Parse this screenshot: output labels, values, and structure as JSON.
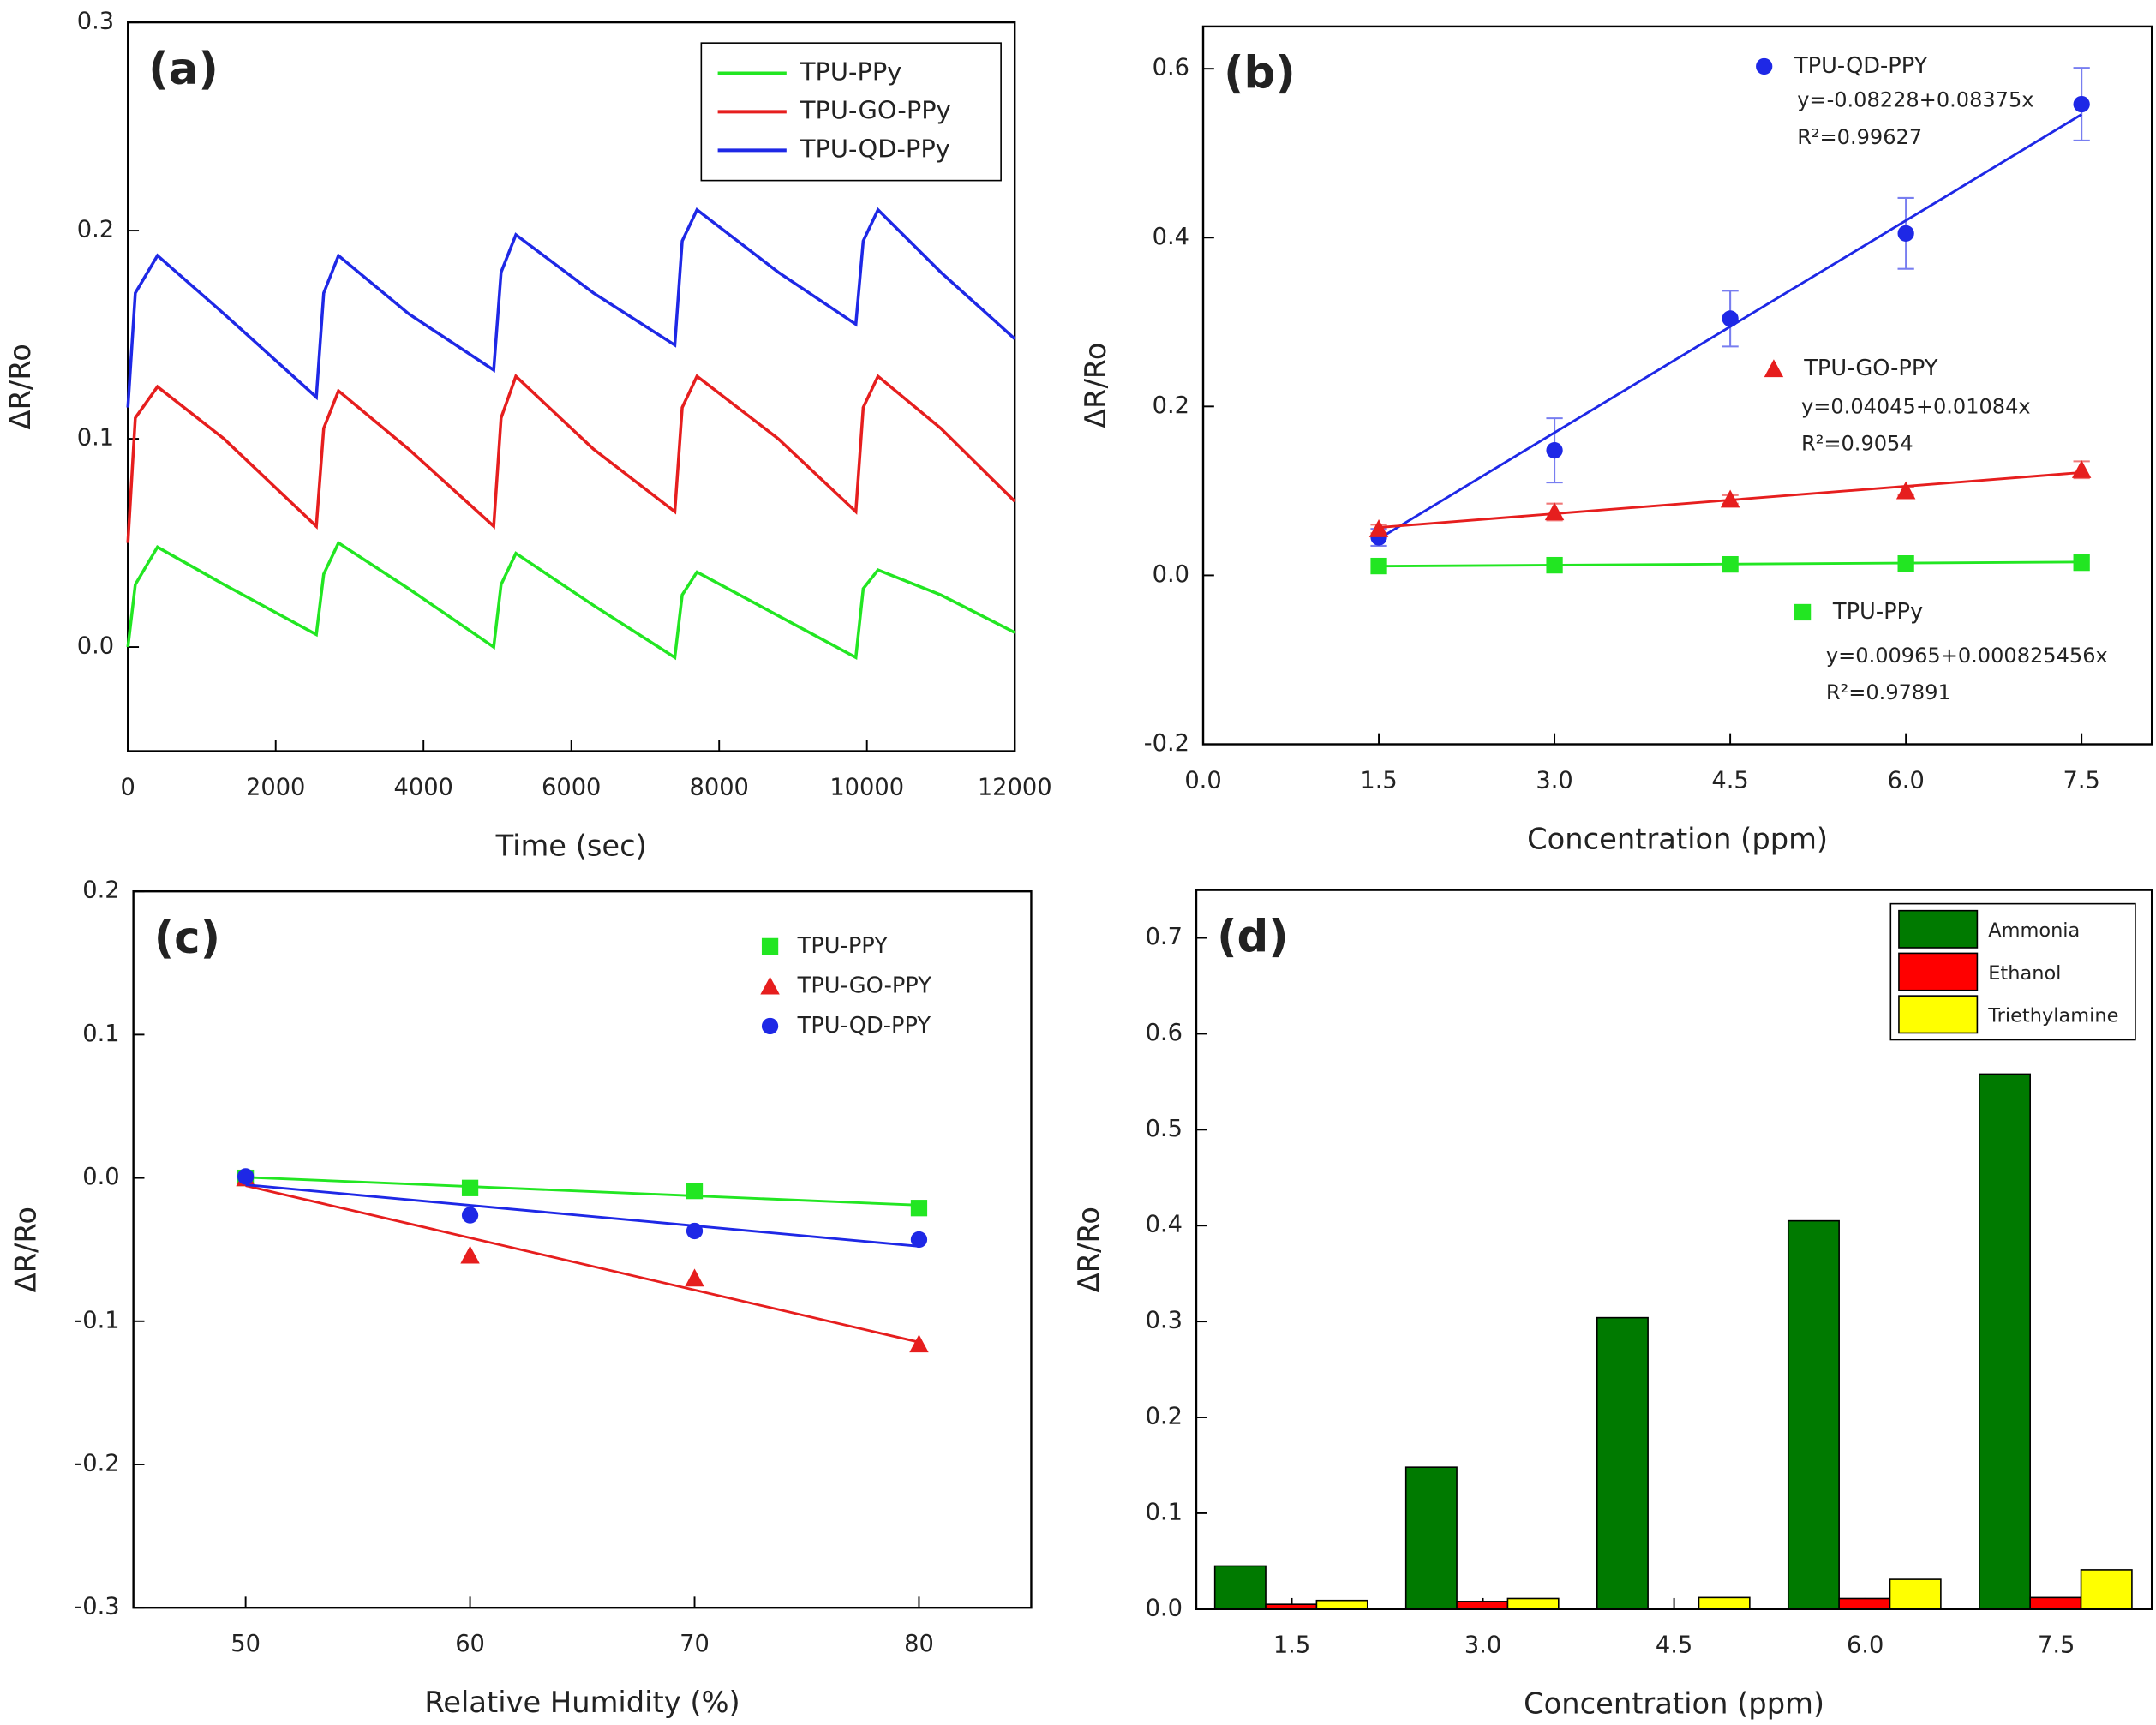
{
  "chart_data": [
    {
      "type": "line",
      "label": "(a)",
      "xlabel": "Time (sec)",
      "ylabel": "ΔR/Ro",
      "legend": "upper right",
      "x": [
        0,
        100,
        400,
        1300,
        2550,
        2650,
        2850,
        3800,
        4950,
        5050,
        5250,
        6300,
        7400,
        7500,
        7700,
        8800,
        9850,
        9950,
        10150,
        11000,
        12000
      ],
      "series": [
        {
          "name": "TPU-PPy",
          "color": "#22e622",
          "values": [
            0,
            0.03,
            0.048,
            0.03,
            0.006,
            0.035,
            0.05,
            0.028,
            0.0,
            0.03,
            0.045,
            0.02,
            -0.005,
            0.025,
            0.036,
            0.015,
            -0.005,
            0.028,
            0.037,
            0.025,
            0.007
          ]
        },
        {
          "name": "TPU-GO-PPy",
          "color": "#e61e1e",
          "values": [
            0.05,
            0.11,
            0.125,
            0.1,
            0.058,
            0.105,
            0.123,
            0.095,
            0.058,
            0.11,
            0.13,
            0.095,
            0.065,
            0.115,
            0.13,
            0.1,
            0.065,
            0.115,
            0.13,
            0.105,
            0.07
          ]
        },
        {
          "name": "TPU-QD-PPy",
          "color": "#1e28e6",
          "values": [
            0.115,
            0.17,
            0.188,
            0.16,
            0.12,
            0.17,
            0.188,
            0.16,
            0.133,
            0.18,
            0.198,
            0.17,
            0.145,
            0.195,
            0.21,
            0.18,
            0.155,
            0.195,
            0.21,
            0.18,
            0.148
          ]
        }
      ],
      "xlim": [
        0,
        12000
      ],
      "xticks": [
        0,
        2000,
        4000,
        6000,
        8000,
        10000,
        12000
      ],
      "ylim": [
        -0.05,
        0.3
      ],
      "yticks": [
        {
          "value": 0,
          "label": "0.0"
        },
        0.1,
        0.2,
        0.3
      ]
    },
    {
      "type": "scatter",
      "label": "(b)",
      "xlabel": "Concentration (ppm)",
      "ylabel": "ΔR/Ro",
      "x": [
        1.5,
        3,
        4.5,
        6,
        7.5
      ],
      "series": [
        {
          "name": "TPU-QD-PPY",
          "color": "#1e28e6",
          "marker": "circle",
          "values": [
            0.045,
            0.148,
            0.304,
            0.405,
            0.558
          ],
          "errors": [
            0.01,
            0.038,
            0.033,
            0.042,
            0.043
          ],
          "fit_intercept": -0.08228,
          "fit_slope": 0.08375,
          "equation": "y=-0.08228+0.08375x",
          "r2": "R²=0.99627"
        },
        {
          "name": "TPU-GO-PPY",
          "color": "#e61e1e",
          "marker": "triangle",
          "values": [
            0.055,
            0.075,
            0.09,
            0.1,
            0.125
          ],
          "errors": [
            0.005,
            0.01,
            0.005,
            0.005,
            0.01
          ],
          "fit_intercept": 0.04045,
          "fit_slope": 0.01084,
          "equation": "y=0.04045+0.01084x",
          "r2": "R²=0.9054"
        },
        {
          "name": "TPU-PPy",
          "color": "#22e622",
          "marker": "square",
          "values": [
            0.011,
            0.012,
            0.013,
            0.014,
            0.015
          ],
          "fit_intercept": 0.00965,
          "fit_slope": 0.000825456,
          "equation": "y=0.00965+0.000825456x",
          "r2": "R²=0.97891"
        }
      ],
      "xlim": [
        0,
        8.1
      ],
      "xticks": [
        {
          "value": 0,
          "label": "0.0"
        },
        1.5,
        {
          "value": 3,
          "label": "3.0"
        },
        4.5,
        {
          "value": 6,
          "label": "6.0"
        },
        7.5
      ],
      "ylim": [
        -0.2,
        0.65
      ],
      "yticks": [
        -0.2,
        {
          "value": 0,
          "label": "0.0"
        },
        0.2,
        0.4,
        0.6
      ]
    },
    {
      "type": "scatter",
      "label": "(c)",
      "xlabel": "Relative Humidity (%)",
      "ylabel": "ΔR/Ro",
      "legend": "upper right",
      "x": [
        50,
        60,
        70,
        80
      ],
      "series": [
        {
          "name": "TPU-PPY",
          "color": "#22e622",
          "marker": "square",
          "values": [
            0.0,
            -0.007,
            -0.009,
            -0.021
          ]
        },
        {
          "name": "TPU-GO-PPY",
          "color": "#e61e1e",
          "marker": "triangle",
          "values": [
            0.0,
            -0.054,
            -0.07,
            -0.116
          ]
        },
        {
          "name": "TPU-QD-PPY",
          "color": "#1e28e6",
          "marker": "circle",
          "values": [
            0.001,
            -0.026,
            -0.037,
            -0.043
          ]
        }
      ],
      "xlim": [
        45,
        85
      ],
      "xticks": [
        50,
        60,
        70,
        80
      ],
      "ylim": [
        -0.3,
        0.2
      ],
      "yticks": [
        -0.3,
        -0.2,
        -0.1,
        {
          "value": 0,
          "label": "0.0"
        },
        0.1,
        0.2
      ]
    },
    {
      "type": "bar",
      "label": "(d)",
      "xlabel": "Concentration (ppm)",
      "ylabel": "ΔR/Ro",
      "legend": "upper right",
      "categories": [
        "1.5",
        "3.0",
        "4.5",
        "6.0",
        "7.5"
      ],
      "series": [
        {
          "name": "Ammonia",
          "color": "#007a00",
          "values": [
            0.045,
            0.148,
            0.304,
            0.405,
            0.558
          ]
        },
        {
          "name": "Ethanol",
          "color": "#ff0000",
          "values": [
            0.005,
            0.008,
            0.0,
            0.011,
            0.012
          ]
        },
        {
          "name": "Triethylamine",
          "color": "#ffff00",
          "values": [
            0.009,
            0.011,
            0.012,
            0.031,
            0.041
          ]
        }
      ],
      "ylim": [
        0,
        0.75
      ],
      "yticks": [
        {
          "value": 0,
          "label": "0.0"
        },
        0.1,
        0.2,
        0.3,
        0.4,
        0.5,
        0.6,
        0.7
      ]
    }
  ]
}
